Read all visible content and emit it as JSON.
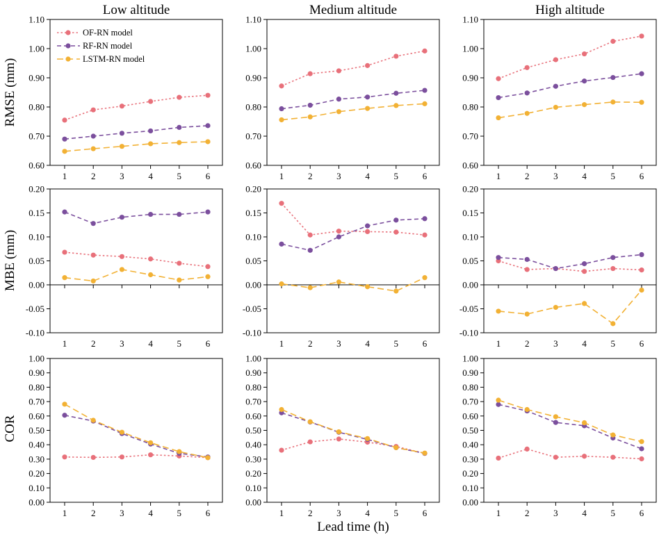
{
  "column_titles": [
    "Low altitude",
    "Medium altitude",
    "High altitude"
  ],
  "row_labels": [
    "RMSE (mm)",
    "MBE (mm)",
    "COR"
  ],
  "xlabel": "Lead time (h)",
  "colors": {
    "OF-RN model": "#e8707a",
    "RF-RN model": "#7b4f9d",
    "LSTM-RN model": "#f2b134"
  },
  "legend": [
    "OF-RN model",
    "RF-RN model",
    "LSTM-RN model"
  ],
  "y_ticks": {
    "RMSE": [
      "0.60",
      "0.70",
      "0.80",
      "0.90",
      "1.00",
      "1.10"
    ],
    "MBE": [
      "-0.10",
      "-0.05",
      "0.00",
      "0.05",
      "0.10",
      "0.15",
      "0.20"
    ],
    "COR": [
      "0.00",
      "0.10",
      "0.20",
      "0.30",
      "0.40",
      "0.50",
      "0.60",
      "0.70",
      "0.80",
      "0.90",
      "1.00"
    ]
  },
  "x_ticks": [
    "1",
    "2",
    "3",
    "4",
    "5",
    "6"
  ],
  "chart_data": [
    {
      "type": "line",
      "title": "Low altitude",
      "ylabel": "RMSE (mm)",
      "ylim": [
        0.6,
        1.1
      ],
      "x": [
        1,
        2,
        3,
        4,
        5,
        6
      ],
      "series": [
        {
          "name": "OF-RN model",
          "values": [
            0.755,
            0.79,
            0.803,
            0.819,
            0.833,
            0.84
          ]
        },
        {
          "name": "RF-RN model",
          "values": [
            0.69,
            0.7,
            0.71,
            0.718,
            0.73,
            0.736
          ]
        },
        {
          "name": "LSTM-RN model",
          "values": [
            0.648,
            0.657,
            0.665,
            0.674,
            0.678,
            0.681
          ]
        }
      ]
    },
    {
      "type": "line",
      "title": "Medium altitude",
      "ylabel": "",
      "ylim": [
        0.6,
        1.1
      ],
      "x": [
        1,
        2,
        3,
        4,
        5,
        6
      ],
      "series": [
        {
          "name": "OF-RN model",
          "values": [
            0.872,
            0.914,
            0.924,
            0.942,
            0.974,
            0.992
          ]
        },
        {
          "name": "RF-RN model",
          "values": [
            0.794,
            0.806,
            0.827,
            0.834,
            0.847,
            0.857
          ]
        },
        {
          "name": "LSTM-RN model",
          "values": [
            0.756,
            0.766,
            0.784,
            0.795,
            0.805,
            0.811
          ]
        }
      ]
    },
    {
      "type": "line",
      "title": "High altitude",
      "ylabel": "",
      "ylim": [
        0.6,
        1.1
      ],
      "x": [
        1,
        2,
        3,
        4,
        5,
        6
      ],
      "series": [
        {
          "name": "OF-RN model",
          "values": [
            0.897,
            0.935,
            0.962,
            0.982,
            1.025,
            1.043
          ]
        },
        {
          "name": "RF-RN model",
          "values": [
            0.832,
            0.848,
            0.871,
            0.889,
            0.901,
            0.914
          ]
        },
        {
          "name": "LSTM-RN model",
          "values": [
            0.763,
            0.778,
            0.799,
            0.808,
            0.817,
            0.816
          ]
        }
      ]
    },
    {
      "type": "line",
      "title": "",
      "ylabel": "MBE (mm)",
      "ylim": [
        -0.1,
        0.2
      ],
      "x": [
        1,
        2,
        3,
        4,
        5,
        6
      ],
      "series": [
        {
          "name": "OF-RN model",
          "values": [
            0.068,
            0.062,
            0.059,
            0.054,
            0.045,
            0.038
          ]
        },
        {
          "name": "RF-RN model",
          "values": [
            0.152,
            0.128,
            0.141,
            0.147,
            0.147,
            0.152
          ]
        },
        {
          "name": "LSTM-RN model",
          "values": [
            0.015,
            0.008,
            0.032,
            0.021,
            0.01,
            0.017
          ]
        }
      ]
    },
    {
      "type": "line",
      "title": "",
      "ylabel": "",
      "ylim": [
        -0.1,
        0.2
      ],
      "x": [
        1,
        2,
        3,
        4,
        5,
        6
      ],
      "series": [
        {
          "name": "OF-RN model",
          "values": [
            0.17,
            0.104,
            0.112,
            0.111,
            0.11,
            0.104
          ]
        },
        {
          "name": "RF-RN model",
          "values": [
            0.085,
            0.072,
            0.1,
            0.123,
            0.135,
            0.138
          ]
        },
        {
          "name": "LSTM-RN model",
          "values": [
            0.002,
            -0.006,
            0.006,
            -0.004,
            -0.013,
            0.015
          ]
        }
      ]
    },
    {
      "type": "line",
      "title": "",
      "ylabel": "",
      "ylim": [
        -0.1,
        0.2
      ],
      "x": [
        1,
        2,
        3,
        4,
        5,
        6
      ],
      "series": [
        {
          "name": "OF-RN model",
          "values": [
            0.05,
            0.032,
            0.034,
            0.028,
            0.034,
            0.031
          ]
        },
        {
          "name": "RF-RN model",
          "values": [
            0.057,
            0.053,
            0.034,
            0.044,
            0.057,
            0.063
          ]
        },
        {
          "name": "LSTM-RN model",
          "values": [
            -0.055,
            -0.061,
            -0.047,
            -0.039,
            -0.081,
            -0.011
          ]
        }
      ]
    },
    {
      "type": "line",
      "title": "",
      "ylabel": "COR",
      "ylim": [
        0.0,
        1.0
      ],
      "x": [
        1,
        2,
        3,
        4,
        5,
        6
      ],
      "series": [
        {
          "name": "OF-RN model",
          "values": [
            0.315,
            0.312,
            0.315,
            0.33,
            0.322,
            0.31
          ]
        },
        {
          "name": "RF-RN model",
          "values": [
            0.605,
            0.565,
            0.478,
            0.405,
            0.34,
            0.315
          ]
        },
        {
          "name": "LSTM-RN model",
          "values": [
            0.682,
            0.57,
            0.487,
            0.414,
            0.352,
            0.31
          ]
        }
      ]
    },
    {
      "type": "line",
      "title": "",
      "ylabel": "",
      "ylim": [
        0.0,
        1.0
      ],
      "x": [
        1,
        2,
        3,
        4,
        5,
        6
      ],
      "series": [
        {
          "name": "OF-RN model",
          "values": [
            0.362,
            0.42,
            0.44,
            0.418,
            0.388,
            0.34
          ]
        },
        {
          "name": "RF-RN model",
          "values": [
            0.622,
            0.558,
            0.487,
            0.437,
            0.38,
            0.34
          ]
        },
        {
          "name": "LSTM-RN model",
          "values": [
            0.645,
            0.56,
            0.49,
            0.443,
            0.38,
            0.342
          ]
        }
      ]
    },
    {
      "type": "line",
      "title": "",
      "ylabel": "",
      "ylim": [
        0.0,
        1.0
      ],
      "x": [
        1,
        2,
        3,
        4,
        5,
        6
      ],
      "series": [
        {
          "name": "OF-RN model",
          "values": [
            0.307,
            0.37,
            0.313,
            0.32,
            0.313,
            0.302
          ]
        },
        {
          "name": "RF-RN model",
          "values": [
            0.68,
            0.635,
            0.555,
            0.532,
            0.447,
            0.372
          ]
        },
        {
          "name": "LSTM-RN model",
          "values": [
            0.71,
            0.645,
            0.595,
            0.553,
            0.468,
            0.422
          ]
        }
      ]
    }
  ]
}
